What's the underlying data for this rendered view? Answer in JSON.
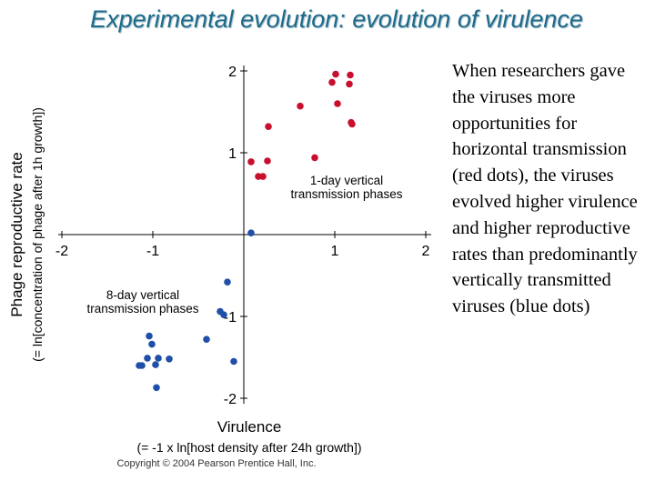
{
  "slide": {
    "title": "Experimental evolution: evolution of virulence",
    "side_text": "When researchers gave the viruses more opportunities for horizontal transmission (red dots), the viruses evolved higher virulence and higher reproductive rates than predominantly vertically transmitted viruses (blue dots)"
  },
  "chart_data": {
    "type": "scatter",
    "title": "",
    "xlabel": "Virulence",
    "xlabel_sub": "(= -1 x ln[host density after 24h growth])",
    "ylabel": "Phage reproductive rate",
    "ylabel_sub": "(= ln[concentration of phage after 1h growth])",
    "xlim": [
      -2,
      2
    ],
    "ylim": [
      -2,
      2
    ],
    "xticks": [
      {
        "value": -2,
        "label": "-2"
      },
      {
        "value": -1,
        "label": "-1"
      },
      {
        "value": 1,
        "label": "1"
      },
      {
        "value": 2,
        "label": "2"
      }
    ],
    "yticks": [
      {
        "value": 2,
        "label": "2"
      },
      {
        "value": 1,
        "label": "1"
      },
      {
        "value": -1,
        "label": "-1"
      },
      {
        "value": -2,
        "label": "-2"
      }
    ],
    "grid": false,
    "colors": {
      "red": "#c8102e",
      "blue": "#1f4fa8",
      "axis": "#000000",
      "text": "#000000"
    },
    "series": [
      {
        "name": "1-day vertical transmission phases",
        "color": "#c8102e",
        "annotation_lines": [
          "1-day vertical",
          "transmission phases"
        ],
        "points": [
          [
            1.01,
            1.96
          ],
          [
            1.17,
            1.95
          ],
          [
            0.97,
            1.86
          ],
          [
            1.16,
            1.84
          ],
          [
            1.03,
            1.6
          ],
          [
            0.62,
            1.57
          ],
          [
            1.18,
            1.37
          ],
          [
            1.19,
            1.35
          ],
          [
            0.27,
            1.32
          ],
          [
            0.78,
            0.94
          ],
          [
            0.26,
            0.9
          ],
          [
            0.08,
            0.89
          ],
          [
            0.16,
            0.71
          ],
          [
            0.21,
            0.71
          ]
        ]
      },
      {
        "name": "8-day vertical transmission phases",
        "color": "#1f4fa8",
        "annotation_lines": [
          "8-day vertical",
          "transmission phases"
        ],
        "points": [
          [
            0.08,
            0.02
          ],
          [
            -0.18,
            -0.58
          ],
          [
            -0.26,
            -0.94
          ],
          [
            -0.22,
            -0.98
          ],
          [
            -1.04,
            -1.24
          ],
          [
            -0.41,
            -1.28
          ],
          [
            -1.01,
            -1.34
          ],
          [
            -1.06,
            -1.51
          ],
          [
            -0.94,
            -1.51
          ],
          [
            -0.82,
            -1.52
          ],
          [
            -0.11,
            -1.55
          ],
          [
            -1.15,
            -1.6
          ],
          [
            -1.12,
            -1.6
          ],
          [
            -0.97,
            -1.59
          ],
          [
            -0.96,
            -1.87
          ]
        ]
      }
    ],
    "copyright": "Copyright © 2004 Pearson Prentice Hall, Inc."
  }
}
